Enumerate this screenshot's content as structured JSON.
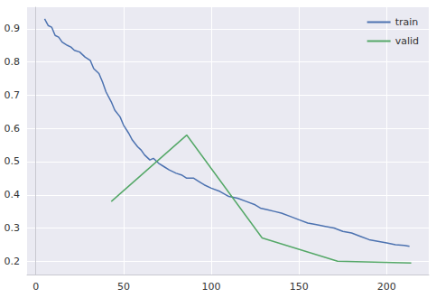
{
  "chart_data": {
    "type": "line",
    "series": [
      {
        "name": "train",
        "color": "#4c72b0",
        "x": [
          5,
          7,
          9,
          11,
          13,
          15,
          18,
          20,
          22,
          25,
          28,
          31,
          33,
          36,
          38,
          40,
          43,
          45,
          48,
          50,
          53,
          55,
          58,
          60,
          62,
          65,
          67,
          70,
          73,
          76,
          80,
          83,
          86,
          90,
          93,
          96,
          100,
          105,
          110,
          115,
          120,
          125,
          128,
          132,
          136,
          140,
          145,
          150,
          155,
          160,
          165,
          170,
          175,
          180,
          185,
          190,
          195,
          200,
          205,
          210,
          213
        ],
        "values": [
          0.93,
          0.91,
          0.905,
          0.88,
          0.875,
          0.86,
          0.85,
          0.845,
          0.835,
          0.83,
          0.815,
          0.805,
          0.78,
          0.765,
          0.74,
          0.71,
          0.68,
          0.655,
          0.635,
          0.61,
          0.585,
          0.565,
          0.545,
          0.535,
          0.52,
          0.505,
          0.51,
          0.495,
          0.485,
          0.475,
          0.465,
          0.46,
          0.45,
          0.45,
          0.44,
          0.43,
          0.42,
          0.41,
          0.395,
          0.39,
          0.38,
          0.37,
          0.36,
          0.355,
          0.35,
          0.345,
          0.335,
          0.325,
          0.315,
          0.31,
          0.305,
          0.3,
          0.29,
          0.285,
          0.275,
          0.265,
          0.26,
          0.255,
          0.25,
          0.248,
          0.245
        ]
      },
      {
        "name": "valid",
        "color": "#55a868",
        "x": [
          43,
          86,
          129,
          172,
          214
        ],
        "values": [
          0.38,
          0.58,
          0.27,
          0.2,
          0.195
        ]
      }
    ],
    "xlim": [
      -5,
      224
    ],
    "xticks": [
      0,
      50,
      100,
      150,
      200
    ],
    "ylim": [
      0.16,
      0.965
    ],
    "yticks": [
      0.2,
      0.3,
      0.4,
      0.5,
      0.6,
      0.7,
      0.8,
      0.9
    ],
    "grid": true,
    "legend": "upper right"
  }
}
